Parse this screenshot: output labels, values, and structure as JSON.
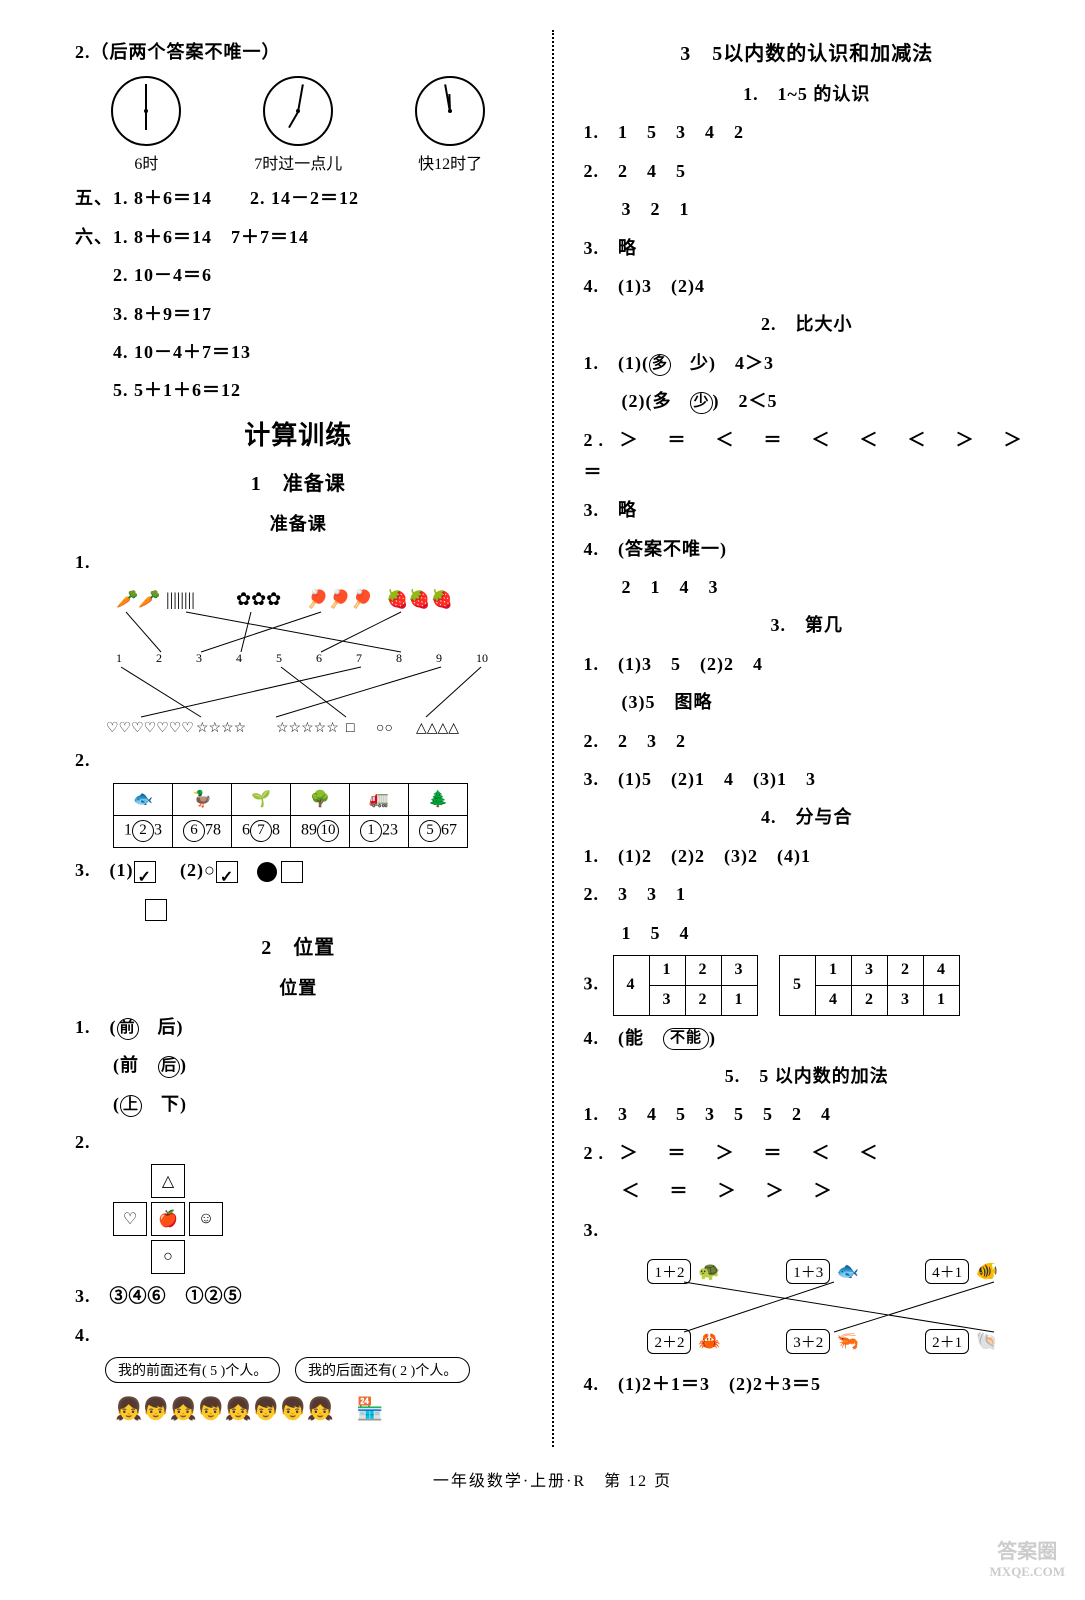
{
  "left": {
    "q2_note": "2.（后两个答案不唯一）",
    "clocks": [
      {
        "label": "6时",
        "hour_angle": 90,
        "min_angle": -90
      },
      {
        "label": "7时过一点儿",
        "hour_angle": 120,
        "min_angle": -80
      },
      {
        "label": "快12时了",
        "hour_angle": -92,
        "min_angle": -100
      }
    ],
    "five1": "五、1. 8＋6＝14",
    "five2": "2. 14－2＝12",
    "six1": "六、1. 8＋6＝14　7＋7＝14",
    "six2": "2. 10－4＝6",
    "six3": "3. 8＋9＝17",
    "six4": "4. 10－4＋7＝13",
    "six5": "5. 5＋1＋6＝12",
    "calc_title": "计算训练",
    "prep_title": "1　准备课",
    "prep_sub": "准备课",
    "table_row1": [
      "🐟",
      "🦆",
      "🌱",
      "🌳",
      "🚛",
      "🌲"
    ],
    "table_row2": [
      {
        "pre": "1",
        "c": "②",
        "post": "3"
      },
      {
        "pre": "",
        "c": "⑥",
        "post": "78"
      },
      {
        "pre": "6",
        "c": "⑦",
        "post": "8"
      },
      {
        "pre": "89",
        "c": "⑩",
        "post": ""
      },
      {
        "pre": "",
        "c": "①",
        "post": "23"
      },
      {
        "pre": "",
        "c": "⑤",
        "post": "67"
      }
    ],
    "q3": "3.　(1)",
    "q3_2": "(2)○",
    "pos_title": "2　位置",
    "pos_sub": "位置",
    "pos1a_pre": "1.　(",
    "pos1a_c": "前",
    "pos1a_post": "　后)",
    "pos1b_pre": "(前　",
    "pos1b_c": "后",
    "pos1b_post": ")",
    "pos1c_pre": "(",
    "pos1c_c": "上",
    "pos1c_post": "　下)",
    "pos2": "2.",
    "cross": {
      "top": "△",
      "left": "♡",
      "mid": "🍎",
      "right": "☺",
      "bot": "○"
    },
    "pos3": "3.　③④⑥　①②⑤",
    "pos4": "4.",
    "bubble1": "我的前面还有( 5 )个人。",
    "bubble2": "我的后面还有( 2 )个人。"
  },
  "right": {
    "title": "3　5以内数的认识和加减法",
    "s1_title": "1.　1~5 的认识",
    "s1_1": "1.　1　5　3　4　2",
    "s1_2": "2.　2　4　5",
    "s1_2b": "3　2　1",
    "s1_3": "3.　略",
    "s1_4": "4.　(1)3　(2)4",
    "s2_title": "2.　比大小",
    "s2_1a": "1.　(1)(",
    "s2_1a_c": "多",
    "s2_1a_post": "　少)　4＞3",
    "s2_1b": "(2)(多　",
    "s2_1b_c": "少",
    "s2_1b_post": ")　2＜5",
    "s2_2": "2. ＞　＝　＜　＝　＜　＜　＜　＞　＞　＝",
    "s2_3": "3.　略",
    "s2_4": "4.　(答案不唯一)",
    "s2_4b": "2　1　4　3",
    "s3_title": "3.　第几",
    "s3_1": "1.　(1)3　5　(2)2　4",
    "s3_1b": "(3)5　图略",
    "s3_2": "2.　2　3　2",
    "s3_3": "3.　(1)5　(2)1　4　(3)1　3",
    "s4_title": "4.　分与合",
    "s4_1": "1.　(1)2　(2)2　(3)2　(4)1",
    "s4_2": "2.　3　3　1",
    "s4_2b": "1　5　4",
    "s4_3": "3.",
    "tbl_a": {
      "head": "4",
      "r1": [
        "1",
        "2",
        "3"
      ],
      "r2": [
        "3",
        "2",
        "1"
      ]
    },
    "tbl_b": {
      "head": "5",
      "r1": [
        "1",
        "3",
        "2",
        "4"
      ],
      "r2": [
        "4",
        "2",
        "3",
        "1"
      ]
    },
    "s4_4_pre": "4.　(能　",
    "s4_4_c": "不能",
    "s4_4_post": ")",
    "s5_title": "5.　5 以内数的加法",
    "s5_1": "1.　3　4　5　3　5　5　2　4",
    "s5_2": "2. ＞　＝　＞　＝　＜　＜",
    "s5_2b": "＜　＝　＞　＞　＞",
    "s5_3": "3.",
    "exprs_top": [
      {
        "e": "1＋2",
        "i": "🐢"
      },
      {
        "e": "1＋3",
        "i": "🐟"
      },
      {
        "e": "4＋1",
        "i": "🐠"
      }
    ],
    "exprs_bot": [
      {
        "e": "2＋2",
        "i": "🦀"
      },
      {
        "e": "3＋2",
        "i": "🦐"
      },
      {
        "e": "2＋1",
        "i": "🐚"
      }
    ],
    "s5_4": "4.　(1)2＋1＝3　(2)2＋3＝5"
  },
  "footer": "一年级数学·上册·R　第 12 页",
  "watermark1": "答案圈",
  "watermark2": "MXQE.COM"
}
